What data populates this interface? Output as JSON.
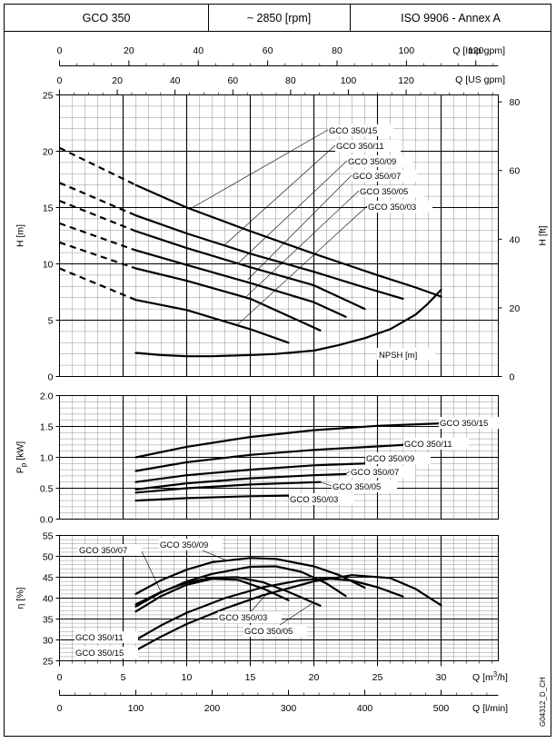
{
  "header": {
    "model": "GCO 350",
    "speed": "~ 2850 [rpm]",
    "standard": "ISO 9906 - Annex A"
  },
  "top_axes": {
    "imp_label": "Q [Imp gpm]",
    "imp_ticks": [
      "0",
      "20",
      "40",
      "60",
      "80",
      "100",
      "120"
    ],
    "us_label": "Q [US gpm]",
    "us_ticks": [
      "0",
      "20",
      "40",
      "60",
      "80",
      "100",
      "120"
    ]
  },
  "bottom_axes": {
    "m3h_label": "Q [m³/h]",
    "m3h_ticks": [
      "0",
      "5",
      "10",
      "15",
      "20",
      "25",
      "30"
    ],
    "lmin_label": "Q [l/min]",
    "lmin_ticks": [
      "0",
      "100",
      "200",
      "300",
      "400",
      "500"
    ]
  },
  "side_code": "G04312_D_CH",
  "chart_data": [
    {
      "type": "line",
      "ylabel": "H [m]",
      "y2label": "H [ft]",
      "xlim": [
        0,
        34.5
      ],
      "ylim": [
        0,
        25
      ],
      "yticks": [
        "0",
        "5",
        "10",
        "15",
        "20",
        "25"
      ],
      "y2ticks": [
        "0",
        "20",
        "40",
        "60",
        "80"
      ],
      "series": [
        {
          "name": "GCO 350/15",
          "dashed_x": [
            0,
            6
          ],
          "dashed_y": [
            20.3,
            17.0
          ],
          "x": [
            6,
            10,
            15,
            20,
            25,
            28,
            30
          ],
          "y": [
            17.0,
            15.0,
            12.9,
            10.9,
            9.0,
            7.9,
            7.1
          ]
        },
        {
          "name": "GCO 350/11",
          "dashed_x": [
            0,
            6
          ],
          "dashed_y": [
            17.2,
            14.3
          ],
          "x": [
            6,
            10,
            15,
            20,
            24,
            27
          ],
          "y": [
            14.3,
            12.7,
            10.9,
            9.3,
            7.9,
            6.9
          ]
        },
        {
          "name": "GCO 350/09",
          "dashed_x": [
            0,
            6
          ],
          "dashed_y": [
            15.6,
            12.9
          ],
          "x": [
            6,
            10,
            15,
            20,
            24
          ],
          "y": [
            12.9,
            11.4,
            9.7,
            8.1,
            6.0
          ]
        },
        {
          "name": "GCO 350/07",
          "dashed_x": [
            0,
            6
          ],
          "dashed_y": [
            13.6,
            11.2
          ],
          "x": [
            6,
            10,
            15,
            20,
            22.5
          ],
          "y": [
            11.2,
            9.9,
            8.3,
            6.6,
            5.3
          ]
        },
        {
          "name": "GCO 350/05",
          "dashed_x": [
            0,
            6
          ],
          "dashed_y": [
            11.9,
            9.6
          ],
          "x": [
            6,
            10,
            15,
            20.5
          ],
          "y": [
            9.6,
            8.5,
            6.9,
            4.1
          ]
        },
        {
          "name": "GCO 350/03",
          "dashed_x": [
            0,
            6
          ],
          "dashed_y": [
            9.6,
            6.8
          ],
          "x": [
            6,
            10,
            15,
            18
          ],
          "y": [
            6.8,
            5.9,
            4.2,
            3.0
          ]
        },
        {
          "name": "NPSH [m]",
          "x": [
            6,
            8,
            10,
            12,
            15,
            17,
            20,
            22,
            24,
            26,
            28,
            29,
            30
          ],
          "y": [
            2.1,
            1.9,
            1.8,
            1.8,
            1.9,
            2.0,
            2.3,
            2.8,
            3.4,
            4.2,
            5.5,
            6.5,
            7.7
          ]
        }
      ]
    },
    {
      "type": "line",
      "ylabel": "Pp [kW]",
      "xlim": [
        0,
        34.5
      ],
      "ylim": [
        0,
        2.0
      ],
      "yticks": [
        "0.0",
        "0.5",
        "1.0",
        "1.5",
        "2.0"
      ],
      "series": [
        {
          "name": "GCO 350/15",
          "x": [
            6,
            10,
            15,
            20,
            25,
            30
          ],
          "y": [
            1.0,
            1.17,
            1.33,
            1.44,
            1.51,
            1.55
          ]
        },
        {
          "name": "GCO 350/11",
          "x": [
            6,
            10,
            15,
            20,
            27
          ],
          "y": [
            0.78,
            0.92,
            1.04,
            1.12,
            1.2
          ]
        },
        {
          "name": "GCO 350/09",
          "x": [
            6,
            10,
            15,
            20,
            24
          ],
          "y": [
            0.6,
            0.71,
            0.8,
            0.87,
            0.9
          ]
        },
        {
          "name": "GCO 350/07",
          "x": [
            6,
            10,
            15,
            20,
            22.5
          ],
          "y": [
            0.48,
            0.58,
            0.66,
            0.71,
            0.73
          ]
        },
        {
          "name": "GCO 350/05",
          "x": [
            6,
            10,
            15,
            20.5
          ],
          "y": [
            0.43,
            0.5,
            0.56,
            0.6
          ]
        },
        {
          "name": "GCO 350/03",
          "x": [
            6,
            10,
            15,
            18
          ],
          "y": [
            0.3,
            0.34,
            0.37,
            0.38
          ]
        }
      ]
    },
    {
      "type": "line",
      "ylabel": "η [%]",
      "xlim": [
        0,
        34.5
      ],
      "ylim": [
        25,
        55
      ],
      "yticks": [
        "25",
        "30",
        "35",
        "40",
        "45",
        "50",
        "55"
      ],
      "series": [
        {
          "name": "GCO 350/09",
          "x": [
            6,
            8,
            10,
            12,
            15,
            17,
            20,
            22,
            24
          ],
          "y": [
            41.0,
            44.3,
            46.8,
            48.6,
            49.6,
            49.4,
            47.6,
            45.5,
            42.5
          ]
        },
        {
          "name": "GCO 350/07",
          "x": [
            6,
            8,
            10,
            12,
            15,
            17,
            19,
            21,
            22.5
          ],
          "y": [
            38.0,
            41.4,
            44.0,
            45.8,
            47.5,
            47.6,
            46.3,
            43.5,
            40.5
          ]
        },
        {
          "name": "GCO 350/05",
          "x": [
            6,
            8,
            10,
            12,
            14,
            16,
            18,
            20.5
          ],
          "y": [
            38.5,
            41.5,
            43.7,
            44.9,
            45.0,
            43.8,
            41.5,
            38.2
          ]
        },
        {
          "name": "GCO 350/03",
          "x": [
            6,
            8,
            10,
            12,
            14,
            16,
            18
          ],
          "y": [
            36.8,
            40.5,
            43.2,
            44.6,
            44.4,
            42.3,
            39.5
          ]
        },
        {
          "name": "GCO 350/11",
          "x": [
            6,
            8,
            10,
            13,
            16,
            19,
            21,
            23,
            25,
            27
          ],
          "y": [
            30.0,
            33.5,
            36.5,
            40.0,
            42.6,
            44.3,
            44.7,
            44.2,
            42.6,
            40.4
          ]
        },
        {
          "name": "GCO 350/15",
          "x": [
            6,
            8,
            10,
            13,
            16,
            20,
            23,
            26,
            28,
            30
          ],
          "y": [
            27.5,
            30.8,
            33.8,
            37.5,
            40.7,
            44.0,
            45.5,
            44.8,
            42.2,
            38.3
          ]
        }
      ]
    }
  ]
}
